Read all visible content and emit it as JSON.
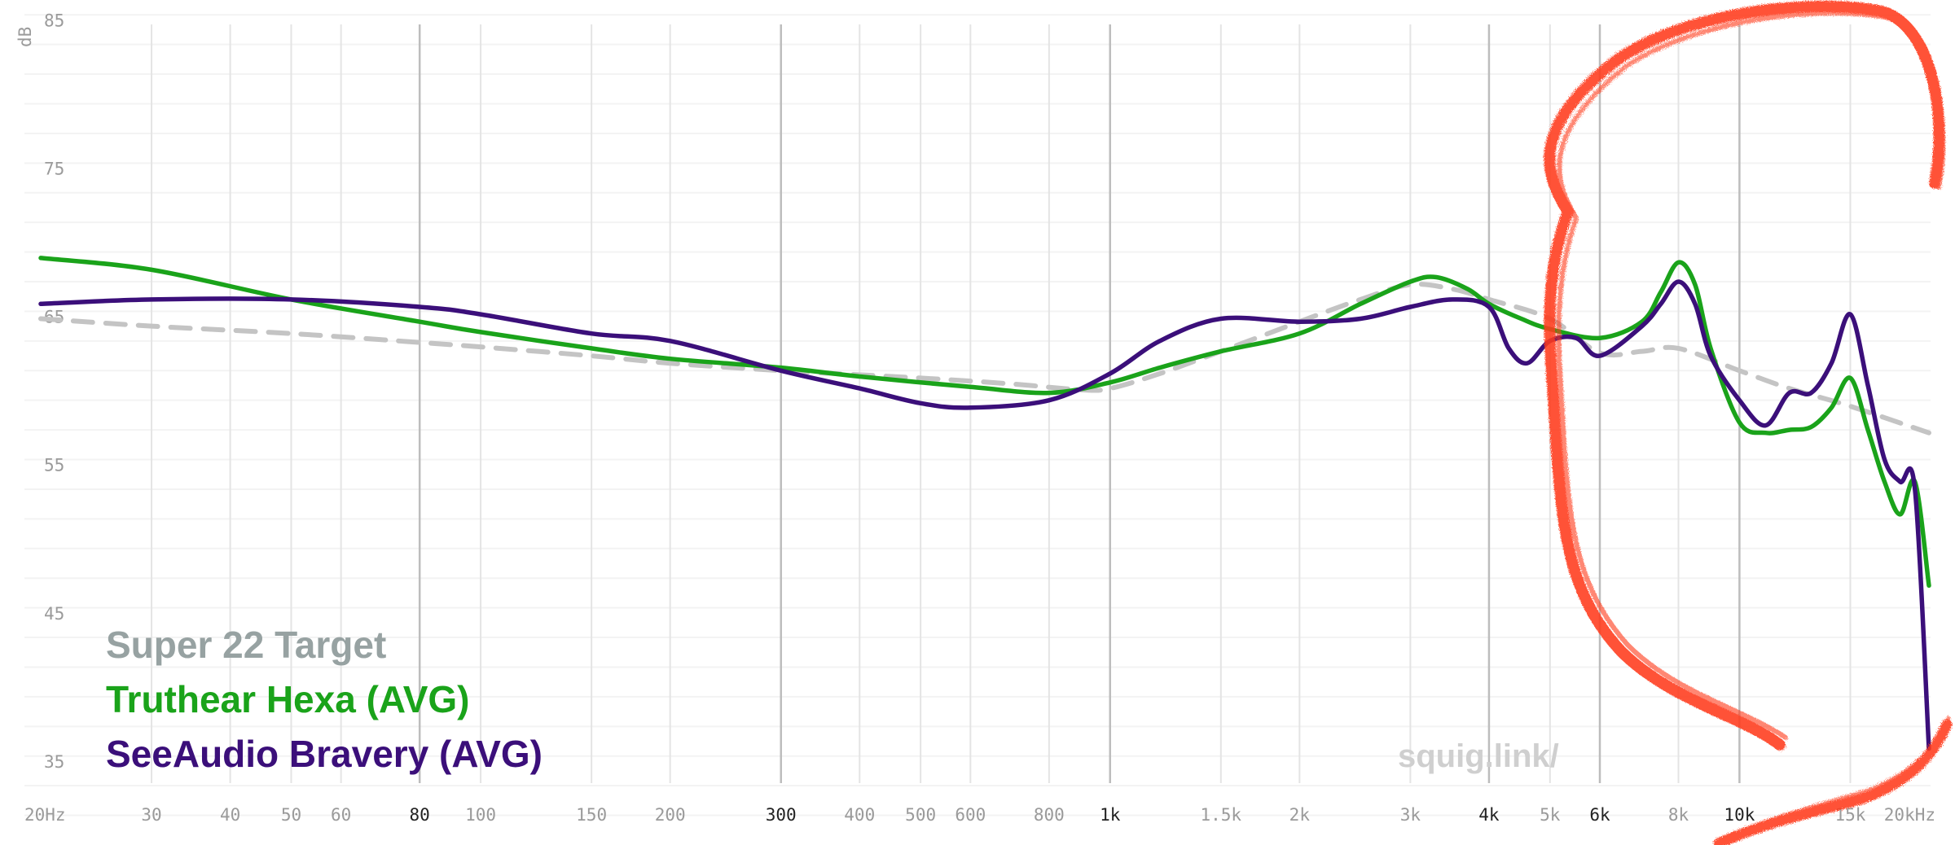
{
  "chart_data": {
    "type": "line",
    "title": "",
    "xlabel": "",
    "ylabel": "dB",
    "x_scale": "log",
    "xlim": [
      20,
      20000
    ],
    "ylim": [
      30,
      87
    ],
    "grid": true,
    "legend_position": "bottom-left",
    "watermark": "squig.link/",
    "y_ticks": [
      35,
      45,
      55,
      65,
      75,
      85
    ],
    "x_ticks": [
      {
        "value": 20,
        "label": "20Hz",
        "major": false
      },
      {
        "value": 30,
        "label": "30",
        "major": false
      },
      {
        "value": 40,
        "label": "40",
        "major": false
      },
      {
        "value": 50,
        "label": "50",
        "major": false
      },
      {
        "value": 60,
        "label": "60",
        "major": false
      },
      {
        "value": 80,
        "label": "80",
        "major": true
      },
      {
        "value": 100,
        "label": "100",
        "major": false
      },
      {
        "value": 150,
        "label": "150",
        "major": false
      },
      {
        "value": 200,
        "label": "200",
        "major": false
      },
      {
        "value": 300,
        "label": "300",
        "major": true
      },
      {
        "value": 400,
        "label": "400",
        "major": false
      },
      {
        "value": 500,
        "label": "500",
        "major": false
      },
      {
        "value": 600,
        "label": "600",
        "major": false
      },
      {
        "value": 800,
        "label": "800",
        "major": false
      },
      {
        "value": 1000,
        "label": "1k",
        "major": true
      },
      {
        "value": 1500,
        "label": "1.5k",
        "major": false
      },
      {
        "value": 2000,
        "label": "2k",
        "major": false
      },
      {
        "value": 3000,
        "label": "3k",
        "major": false
      },
      {
        "value": 4000,
        "label": "4k",
        "major": true
      },
      {
        "value": 5000,
        "label": "5k",
        "major": false
      },
      {
        "value": 6000,
        "label": "6k",
        "major": true
      },
      {
        "value": 8000,
        "label": "8k",
        "major": false
      },
      {
        "value": 10000,
        "label": "10k",
        "major": true
      },
      {
        "value": 15000,
        "label": "15k",
        "major": false
      },
      {
        "value": 20000,
        "label": "20kHz",
        "major": false
      }
    ],
    "series": [
      {
        "name": "Super 22 Target",
        "color": "#c4c4c4",
        "legend_color": "#97a2a2",
        "dashed": true,
        "points": [
          [
            20,
            65.5
          ],
          [
            30,
            65.0
          ],
          [
            50,
            64.5
          ],
          [
            80,
            63.9
          ],
          [
            100,
            63.6
          ],
          [
            150,
            63.0
          ],
          [
            200,
            62.5
          ],
          [
            300,
            62.0
          ],
          [
            500,
            61.5
          ],
          [
            700,
            61.1
          ],
          [
            900,
            60.7
          ],
          [
            1000,
            60.8
          ],
          [
            1200,
            61.8
          ],
          [
            1500,
            63.3
          ],
          [
            2000,
            65.3
          ],
          [
            2500,
            66.8
          ],
          [
            3000,
            67.8
          ],
          [
            3500,
            67.5
          ],
          [
            4000,
            66.8
          ],
          [
            5000,
            65.5
          ],
          [
            6000,
            63.2
          ],
          [
            7000,
            63.3
          ],
          [
            8000,
            63.5
          ],
          [
            10000,
            62.0
          ],
          [
            12000,
            60.8
          ],
          [
            15000,
            59.6
          ],
          [
            20000,
            57.8
          ]
        ]
      },
      {
        "name": "Truthear Hexa (AVG)",
        "color": "#1aa31a",
        "legend_color": "#1aa31a",
        "dashed": false,
        "points": [
          [
            20,
            69.6
          ],
          [
            30,
            68.8
          ],
          [
            50,
            66.8
          ],
          [
            80,
            65.3
          ],
          [
            100,
            64.6
          ],
          [
            150,
            63.5
          ],
          [
            200,
            62.8
          ],
          [
            300,
            62.2
          ],
          [
            400,
            61.6
          ],
          [
            600,
            60.9
          ],
          [
            800,
            60.5
          ],
          [
            1000,
            61.2
          ],
          [
            1200,
            62.2
          ],
          [
            1500,
            63.3
          ],
          [
            2000,
            64.5
          ],
          [
            2500,
            66.5
          ],
          [
            3000,
            68.0
          ],
          [
            3300,
            68.3
          ],
          [
            3700,
            67.5
          ],
          [
            4000,
            66.5
          ],
          [
            4500,
            65.5
          ],
          [
            5000,
            64.8
          ],
          [
            6000,
            64.2
          ],
          [
            7000,
            65.3
          ],
          [
            7500,
            67.3
          ],
          [
            8000,
            69.3
          ],
          [
            8500,
            67.8
          ],
          [
            9000,
            63.5
          ],
          [
            10000,
            58.5
          ],
          [
            11000,
            57.8
          ],
          [
            12000,
            58.0
          ],
          [
            13000,
            58.2
          ],
          [
            14000,
            59.5
          ],
          [
            15000,
            61.5
          ],
          [
            16000,
            58.0
          ],
          [
            17000,
            54.5
          ],
          [
            18000,
            52.3
          ],
          [
            19000,
            54.5
          ],
          [
            20000,
            47.5
          ]
        ]
      },
      {
        "name": "SeeAudio Bravery (AVG)",
        "color": "#3b0f7a",
        "legend_color": "#3b0f7a",
        "dashed": false,
        "points": [
          [
            20,
            66.5
          ],
          [
            30,
            66.8
          ],
          [
            50,
            66.8
          ],
          [
            80,
            66.3
          ],
          [
            100,
            65.8
          ],
          [
            150,
            64.5
          ],
          [
            200,
            64.0
          ],
          [
            300,
            62.0
          ],
          [
            400,
            60.8
          ],
          [
            500,
            59.8
          ],
          [
            600,
            59.5
          ],
          [
            800,
            60.0
          ],
          [
            1000,
            61.8
          ],
          [
            1200,
            64.0
          ],
          [
            1500,
            65.5
          ],
          [
            2000,
            65.3
          ],
          [
            2500,
            65.5
          ],
          [
            3000,
            66.3
          ],
          [
            3500,
            66.8
          ],
          [
            4000,
            66.3
          ],
          [
            4300,
            63.5
          ],
          [
            4600,
            62.5
          ],
          [
            5000,
            64.0
          ],
          [
            5500,
            64.2
          ],
          [
            6000,
            63.0
          ],
          [
            7000,
            65.0
          ],
          [
            7500,
            66.5
          ],
          [
            8000,
            68.0
          ],
          [
            8500,
            66.5
          ],
          [
            9000,
            63.0
          ],
          [
            10000,
            60.0
          ],
          [
            11000,
            58.3
          ],
          [
            12000,
            60.5
          ],
          [
            13000,
            60.5
          ],
          [
            14000,
            62.5
          ],
          [
            15000,
            65.8
          ],
          [
            16000,
            61.0
          ],
          [
            17000,
            56.0
          ],
          [
            18000,
            54.5
          ],
          [
            19000,
            54.0
          ],
          [
            20000,
            36.5
          ]
        ]
      }
    ]
  }
}
